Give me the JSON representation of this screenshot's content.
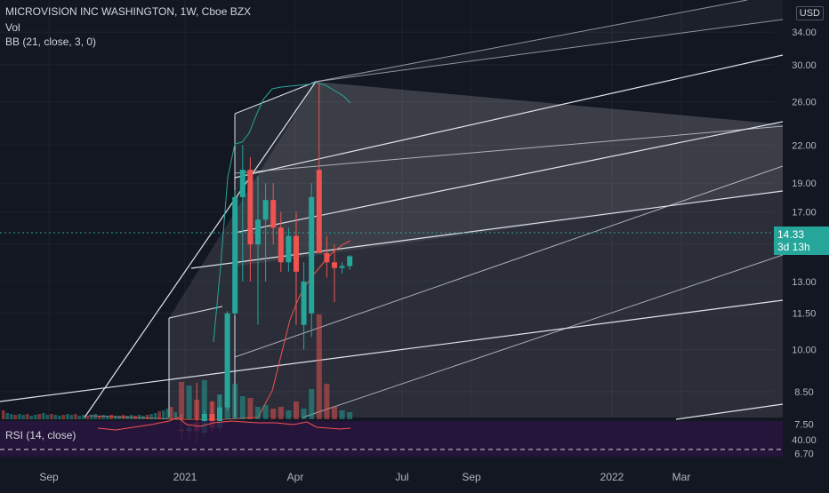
{
  "header": {
    "symbol": "MICROVISION INC WASHINGTON, 1W, Cboe BZX",
    "vol_label": "Vol",
    "bb_label": "BB (21, close, 3, 0)",
    "rsi_label": "RSI (14, close)",
    "currency": "USD"
  },
  "last_price": {
    "value": "14.33",
    "countdown": "3d 13h"
  },
  "colors": {
    "background": "#131722",
    "up": "#26a69a",
    "down": "#ef5350",
    "bb_upper": "#26a69a",
    "bb_lower": "#ef5350",
    "rsi_panel": "#2a1540",
    "fan_line": "#e0e3eb"
  },
  "chart_data": {
    "type": "candlestick",
    "scale": "log",
    "y_ticks": [
      "40.00",
      "34.00",
      "30.00",
      "26.00",
      "22.00",
      "19.00",
      "17.00",
      "15.00",
      "13.00",
      "11.50",
      "10.00",
      "8.50",
      "7.50",
      "6.70"
    ],
    "x_ticks": [
      "Sep",
      "2021",
      "Apr",
      "Jul",
      "Sep",
      "2022",
      "Mar"
    ],
    "rsi_tick": "40.00",
    "candles": [
      {
        "o": 7.35,
        "h": 7.8,
        "l": 7.05,
        "c": 7.3
      },
      {
        "o": 7.3,
        "h": 7.45,
        "l": 7.1,
        "c": 7.4
      },
      {
        "o": 7.55,
        "h": 8.8,
        "l": 7.0,
        "c": 7.3
      },
      {
        "o": 7.25,
        "h": 7.9,
        "l": 7.15,
        "c": 7.8
      },
      {
        "o": 7.8,
        "h": 8.2,
        "l": 7.3,
        "c": 7.4
      },
      {
        "o": 7.4,
        "h": 8.4,
        "l": 7.3,
        "c": 8.0
      },
      {
        "o": 8.0,
        "h": 11.6,
        "l": 7.9,
        "c": 11.5
      },
      {
        "o": 11.5,
        "h": 18.5,
        "l": 11.4,
        "c": 18.0
      },
      {
        "o": 18.0,
        "h": 22.0,
        "l": 13.0,
        "c": 20.0
      },
      {
        "o": 20.0,
        "h": 21.0,
        "l": 13.0,
        "c": 15.0
      },
      {
        "o": 15.0,
        "h": 19.5,
        "l": 11.0,
        "c": 16.5
      },
      {
        "o": 16.5,
        "h": 19.0,
        "l": 13.0,
        "c": 17.8
      },
      {
        "o": 17.8,
        "h": 19.0,
        "l": 15.0,
        "c": 16.0
      },
      {
        "o": 16.0,
        "h": 17.0,
        "l": 13.5,
        "c": 14.0
      },
      {
        "o": 14.0,
        "h": 16.0,
        "l": 13.5,
        "c": 15.5
      },
      {
        "o": 15.5,
        "h": 17.0,
        "l": 11.0,
        "c": 13.5
      },
      {
        "o": 11.0,
        "h": 14.0,
        "l": 10.0,
        "c": 13.0
      },
      {
        "o": 11.5,
        "h": 19.0,
        "l": 10.5,
        "c": 18.0
      },
      {
        "o": 20.0,
        "h": 28.0,
        "l": 14.5,
        "c": 14.5
      },
      {
        "o": 14.5,
        "h": 15.5,
        "l": 13.2,
        "c": 14.0
      },
      {
        "o": 14.0,
        "h": 15.0,
        "l": 12.0,
        "c": 13.7
      },
      {
        "o": 13.7,
        "h": 14.0,
        "l": 13.4,
        "c": 13.8
      },
      {
        "o": 13.8,
        "h": 14.4,
        "l": 13.6,
        "c": 14.33
      }
    ]
  }
}
